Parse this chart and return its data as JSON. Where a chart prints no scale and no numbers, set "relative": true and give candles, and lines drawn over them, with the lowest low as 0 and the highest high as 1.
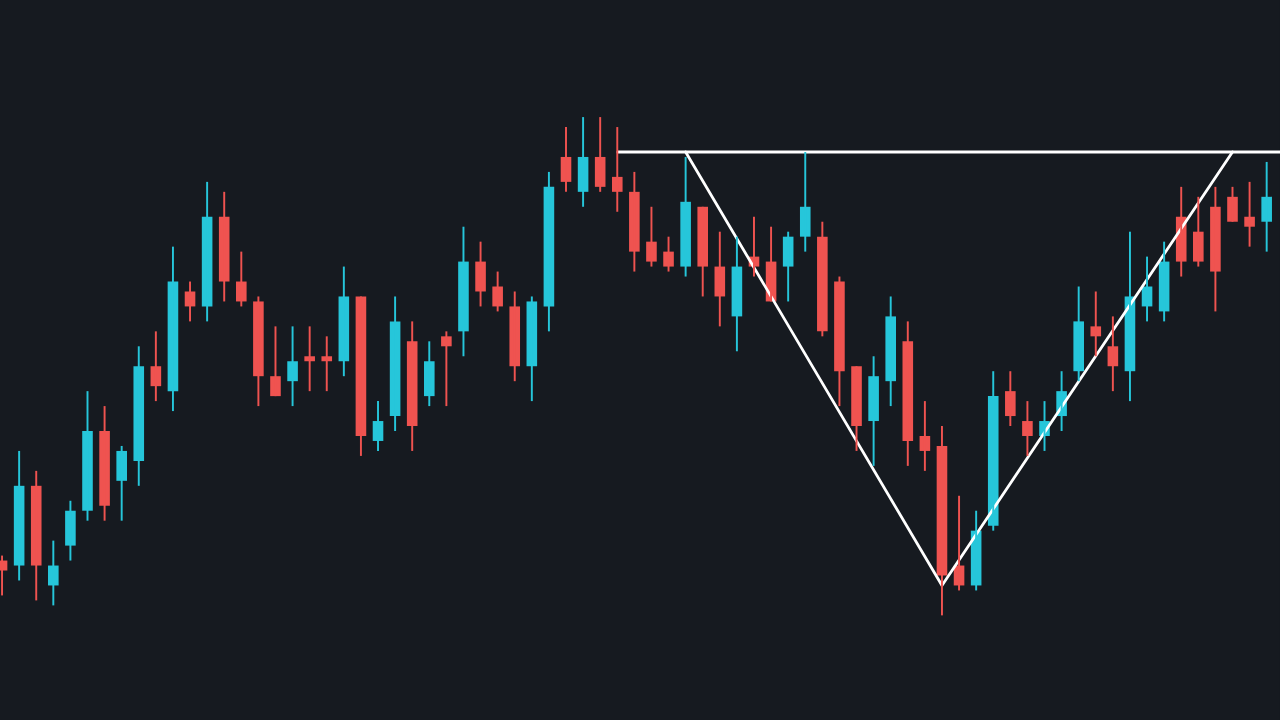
{
  "chart_data": {
    "type": "candlestick",
    "relative": true,
    "categories": [
      null,
      null,
      null,
      null,
      null,
      null,
      null,
      null,
      null,
      null,
      null,
      null,
      null,
      null,
      null,
      null,
      null,
      null,
      null,
      null,
      null,
      null,
      null,
      null,
      null,
      null,
      null,
      null,
      null,
      null,
      null,
      null,
      null,
      null,
      null,
      null,
      null,
      null,
      null,
      null,
      null,
      null,
      null,
      null,
      null,
      null,
      null,
      null,
      null,
      null,
      null,
      null,
      null,
      null,
      null,
      null,
      null,
      null,
      null,
      null,
      null,
      null,
      null,
      null,
      null,
      null,
      null,
      null,
      null,
      null,
      null,
      null,
      null,
      null,
      null
    ],
    "ref_lines": [
      {
        "axis": "y",
        "value": 0.93,
        "color": "#ffffff"
      }
    ],
    "ohlc": [
      [
        0.11,
        0.12,
        0.04,
        0.09
      ],
      [
        0.1,
        0.33,
        0.07,
        0.26
      ],
      [
        0.26,
        0.29,
        0.03,
        0.1
      ],
      [
        0.06,
        0.15,
        0.02,
        0.1
      ],
      [
        0.14,
        0.23,
        0.11,
        0.21
      ],
      [
        0.21,
        0.45,
        0.19,
        0.37
      ],
      [
        0.37,
        0.42,
        0.19,
        0.22
      ],
      [
        0.27,
        0.34,
        0.19,
        0.33
      ],
      [
        0.31,
        0.54,
        0.26,
        0.5
      ],
      [
        0.5,
        0.57,
        0.43,
        0.46
      ],
      [
        0.45,
        0.74,
        0.41,
        0.67
      ],
      [
        0.65,
        0.67,
        0.59,
        0.62
      ],
      [
        0.62,
        0.87,
        0.59,
        0.8
      ],
      [
        0.8,
        0.85,
        0.63,
        0.67
      ],
      [
        0.67,
        0.73,
        0.62,
        0.63
      ],
      [
        0.63,
        0.64,
        0.42,
        0.48
      ],
      [
        0.48,
        0.58,
        0.44,
        0.44
      ],
      [
        0.47,
        0.58,
        0.42,
        0.51
      ],
      [
        0.52,
        0.58,
        0.45,
        0.51
      ],
      [
        0.52,
        0.56,
        0.45,
        0.51
      ],
      [
        0.51,
        0.7,
        0.48,
        0.64
      ],
      [
        0.64,
        0.64,
        0.32,
        0.36
      ],
      [
        0.35,
        0.43,
        0.33,
        0.39
      ],
      [
        0.4,
        0.64,
        0.37,
        0.59
      ],
      [
        0.55,
        0.59,
        0.33,
        0.38
      ],
      [
        0.44,
        0.55,
        0.42,
        0.51
      ],
      [
        0.56,
        0.57,
        0.42,
        0.54
      ],
      [
        0.57,
        0.78,
        0.52,
        0.71
      ],
      [
        0.71,
        0.75,
        0.62,
        0.65
      ],
      [
        0.66,
        0.69,
        0.61,
        0.62
      ],
      [
        0.62,
        0.65,
        0.47,
        0.5
      ],
      [
        0.5,
        0.64,
        0.43,
        0.63
      ],
      [
        0.62,
        0.89,
        0.57,
        0.86
      ],
      [
        0.92,
        0.98,
        0.85,
        0.87
      ],
      [
        0.85,
        1.0,
        0.82,
        0.92
      ],
      [
        0.92,
        1.0,
        0.85,
        0.86
      ],
      [
        0.88,
        0.98,
        0.81,
        0.85
      ],
      [
        0.85,
        0.89,
        0.69,
        0.73
      ],
      [
        0.75,
        0.82,
        0.7,
        0.71
      ],
      [
        0.73,
        0.76,
        0.69,
        0.7
      ],
      [
        0.7,
        0.92,
        0.68,
        0.83
      ],
      [
        0.82,
        0.82,
        0.64,
        0.7
      ],
      [
        0.7,
        0.77,
        0.58,
        0.64
      ],
      [
        0.6,
        0.76,
        0.53,
        0.7
      ],
      [
        0.72,
        0.8,
        0.68,
        0.7
      ],
      [
        0.71,
        0.78,
        0.63,
        0.63
      ],
      [
        0.7,
        0.77,
        0.63,
        0.76
      ],
      [
        0.76,
        0.93,
        0.73,
        0.82
      ],
      [
        0.76,
        0.79,
        0.56,
        0.57
      ],
      [
        0.67,
        0.68,
        0.42,
        0.49
      ],
      [
        0.5,
        0.5,
        0.33,
        0.38
      ],
      [
        0.39,
        0.52,
        0.3,
        0.48
      ],
      [
        0.47,
        0.64,
        0.42,
        0.6
      ],
      [
        0.55,
        0.59,
        0.3,
        0.35
      ],
      [
        0.36,
        0.43,
        0.29,
        0.33
      ],
      [
        0.34,
        0.38,
        0.0,
        0.08
      ],
      [
        0.1,
        0.24,
        0.05,
        0.06
      ],
      [
        0.06,
        0.21,
        0.05,
        0.17
      ],
      [
        0.18,
        0.49,
        0.17,
        0.44
      ],
      [
        0.45,
        0.49,
        0.38,
        0.4
      ],
      [
        0.39,
        0.43,
        0.32,
        0.36
      ],
      [
        0.36,
        0.43,
        0.33,
        0.39
      ],
      [
        0.4,
        0.49,
        0.37,
        0.45
      ],
      [
        0.49,
        0.66,
        0.47,
        0.59
      ],
      [
        0.58,
        0.65,
        0.52,
        0.56
      ],
      [
        0.54,
        0.6,
        0.45,
        0.5
      ],
      [
        0.49,
        0.77,
        0.43,
        0.64
      ],
      [
        0.62,
        0.72,
        0.59,
        0.66
      ],
      [
        0.61,
        0.75,
        0.59,
        0.71
      ],
      [
        0.8,
        0.86,
        0.68,
        0.71
      ],
      [
        0.77,
        0.84,
        0.7,
        0.71
      ],
      [
        0.82,
        0.86,
        0.61,
        0.69
      ],
      [
        0.84,
        0.86,
        0.79,
        0.79
      ],
      [
        0.8,
        0.87,
        0.74,
        0.78
      ],
      [
        0.79,
        0.91,
        0.73,
        0.84
      ]
    ],
    "colors": [
      "#ef5350",
      "#26c6da",
      "#ef5350",
      "#26c6da",
      "#26c6da",
      "#26c6da",
      "#ef5350",
      "#26c6da",
      "#26c6da",
      "#ef5350",
      "#26c6da",
      "#ef5350",
      "#26c6da",
      "#ef5350",
      "#ef5350",
      "#ef5350",
      "#ef5350",
      "#26c6da",
      "#ef5350",
      "#ef5350",
      "#26c6da",
      "#ef5350",
      "#26c6da",
      "#26c6da",
      "#ef5350",
      "#26c6da",
      "#ef5350",
      "#26c6da",
      "#ef5350",
      "#ef5350",
      "#ef5350",
      "#26c6da",
      "#26c6da",
      "#ef5350",
      "#26c6da",
      "#ef5350",
      "#ef5350",
      "#ef5350",
      "#ef5350",
      "#ef5350",
      "#26c6da",
      "#ef5350",
      "#ef5350",
      "#26c6da",
      "#ef5350",
      "#ef5350",
      "#26c6da",
      "#26c6da",
      "#ef5350",
      "#ef5350",
      "#ef5350",
      "#26c6da",
      "#26c6da",
      "#ef5350",
      "#ef5350",
      "#ef5350",
      "#ef5350",
      "#26c6da",
      "#26c6da",
      "#ef5350",
      "#ef5350",
      "#26c6da",
      "#26c6da",
      "#26c6da",
      "#ef5350",
      "#ef5350",
      "#26c6da",
      "#26c6da",
      "#26c6da",
      "#ef5350",
      "#ef5350",
      "#ef5350",
      "#ef5350",
      "#ef5350",
      "#26c6da"
    ],
    "series": [
      {
        "type": "line",
        "color": "#ffffff",
        "values": [
          null,
          null,
          null,
          null,
          null,
          null,
          null,
          null,
          null,
          null,
          null,
          null,
          null,
          null,
          null,
          null,
          null,
          null,
          null,
          null,
          null,
          null,
          null,
          null,
          null,
          null,
          null,
          null,
          null,
          null,
          null,
          null,
          null,
          null,
          null,
          null,
          null,
          null,
          null,
          null,
          0.93,
          null,
          null,
          null,
          null,
          null,
          null,
          null,
          null,
          null,
          null,
          null,
          null,
          null,
          null,
          0.06,
          null,
          null,
          null,
          null,
          null,
          null,
          null,
          null,
          null,
          null,
          null,
          null,
          null,
          null,
          null,
          null,
          0.93,
          null,
          null
        ]
      }
    ]
  }
}
